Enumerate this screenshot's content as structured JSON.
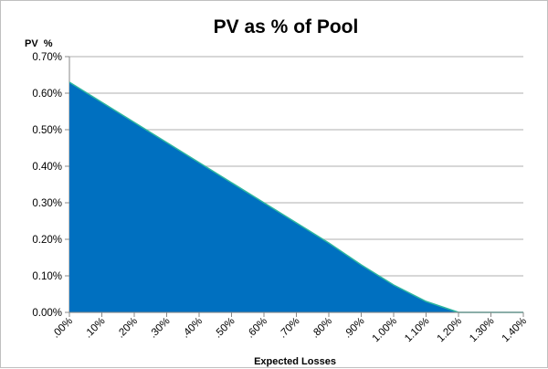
{
  "chart_data": {
    "type": "area",
    "title": "PV as % of Pool",
    "ylabel": "PV  %",
    "xlabel": "Expected Losses",
    "x": [
      0,
      0.1,
      0.2,
      0.3,
      0.4,
      0.5,
      0.6,
      0.7,
      0.8,
      0.9,
      1.0,
      1.1,
      1.2,
      1.3,
      1.4
    ],
    "x_tick_labels": [
      ".00%",
      ".10%",
      ".20%",
      ".30%",
      ".40%",
      ".50%",
      ".60%",
      ".70%",
      ".80%",
      ".90%",
      "1.00%",
      "1.10%",
      "1.20%",
      "1.30%",
      "1.40%"
    ],
    "y_tick_labels": [
      "0.00%",
      "0.10%",
      "0.20%",
      "0.30%",
      "0.40%",
      "0.50%",
      "0.60%",
      "0.70%"
    ],
    "series": [
      {
        "values": [
          0.63,
          0.575,
          0.52,
          0.465,
          0.41,
          0.355,
          0.3,
          0.245,
          0.19,
          0.13,
          0.075,
          0.03,
          0,
          0,
          0
        ]
      }
    ],
    "xlim": [
      0,
      1.4
    ],
    "ylim": [
      0,
      0.7
    ],
    "grid": "horizontal",
    "colors": {
      "fill": "#0070c0",
      "line": "#2fb7a0",
      "grid": "#bfbfbf"
    }
  }
}
